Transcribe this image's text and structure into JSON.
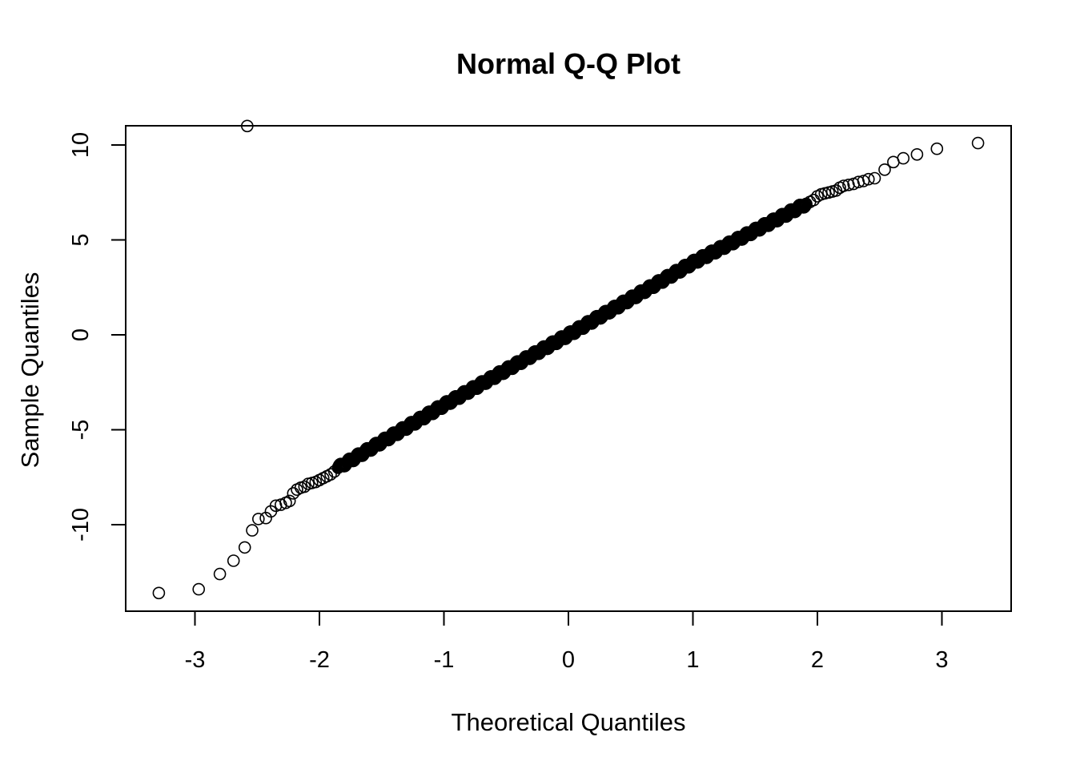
{
  "chart_data": {
    "type": "scatter",
    "title": "Normal Q-Q Plot",
    "xlabel": "Theoretical Quantiles",
    "ylabel": "Sample Quantiles",
    "xlim": [
      -3.55,
      3.55
    ],
    "ylim": [
      -14.5,
      11.1
    ],
    "x_ticks": [
      -3,
      -2,
      -1,
      0,
      1,
      2,
      3
    ],
    "x_tick_labels": [
      "-3",
      "-2",
      "-1",
      "0",
      "1",
      "2",
      "3"
    ],
    "y_ticks": [
      -10,
      -5,
      0,
      5,
      10
    ],
    "y_tick_labels": [
      "-10",
      "-5",
      "0",
      "5",
      "10"
    ],
    "grid": false,
    "legend": "none",
    "marker": "open-circle",
    "color": "#000000",
    "points": [
      [
        -3.29,
        -13.6
      ],
      [
        -2.97,
        -13.4
      ],
      [
        -2.8,
        -12.6
      ],
      [
        -2.69,
        -11.9
      ],
      [
        -2.6,
        -11.2
      ],
      [
        -2.54,
        -10.3
      ],
      [
        -2.49,
        -9.7
      ],
      [
        -2.43,
        -9.65
      ],
      [
        -2.39,
        -9.3
      ],
      [
        -2.35,
        -9.0
      ],
      [
        -2.31,
        -8.95
      ],
      [
        -2.27,
        -8.85
      ],
      [
        -2.24,
        -8.75
      ],
      [
        -2.21,
        -8.35
      ],
      [
        -2.18,
        -8.15
      ],
      [
        -2.15,
        -8.05
      ],
      [
        -2.12,
        -8.0
      ],
      [
        -2.09,
        -7.85
      ],
      [
        -2.06,
        -7.8
      ],
      [
        -2.03,
        -7.75
      ],
      [
        -2.0,
        -7.65
      ],
      [
        -1.97,
        -7.55
      ],
      [
        -1.94,
        -7.45
      ],
      [
        -1.91,
        -7.35
      ],
      [
        -1.88,
        -7.2
      ],
      [
        -1.85,
        -7.0
      ],
      [
        -2.58,
        11.0
      ],
      [
        2.46,
        8.25
      ],
      [
        2.54,
        8.7
      ],
      [
        2.61,
        9.1
      ],
      [
        2.69,
        9.3
      ],
      [
        2.8,
        9.5
      ],
      [
        2.96,
        9.8
      ],
      [
        3.29,
        10.1
      ],
      [
        2.41,
        8.2
      ],
      [
        2.37,
        8.1
      ],
      [
        2.33,
        8.05
      ],
      [
        2.29,
        7.95
      ],
      [
        2.25,
        7.9
      ],
      [
        2.21,
        7.85
      ],
      [
        2.18,
        7.75
      ],
      [
        2.15,
        7.6
      ],
      [
        2.12,
        7.55
      ],
      [
        2.09,
        7.5
      ],
      [
        2.06,
        7.45
      ],
      [
        2.03,
        7.4
      ],
      [
        2.0,
        7.3
      ],
      [
        1.97,
        7.1
      ],
      [
        1.94,
        7.0
      ],
      [
        1.91,
        6.9
      ]
    ],
    "central_band": {
      "from": [
        -1.85,
        -7.0
      ],
      "to": [
        1.91,
        6.9
      ],
      "bends": [
        [
          -1.0,
          -3.7
        ],
        [
          0.0,
          0.0
        ],
        [
          1.0,
          3.8
        ],
        [
          1.5,
          5.5
        ]
      ]
    }
  }
}
